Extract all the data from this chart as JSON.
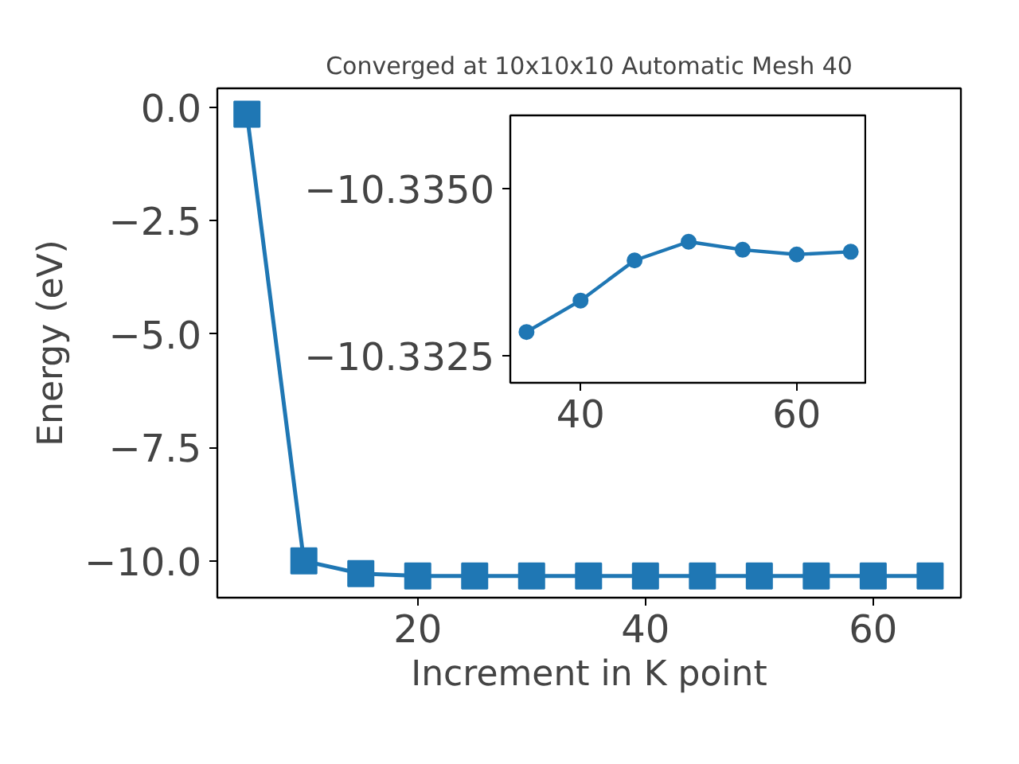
{
  "chart_data": [
    {
      "type": "line",
      "title": "Converged at 10x10x10 Automatic Mesh 40",
      "xlabel": "Increment in K point",
      "ylabel": "Energy (eV)",
      "marker": "square",
      "grid": false,
      "x": [
        5,
        10,
        15,
        20,
        25,
        30,
        35,
        40,
        45,
        50,
        55,
        60,
        65
      ],
      "series": [
        {
          "color": "#1f77b4",
          "values": [
            -0.15,
            -10.0,
            -10.28,
            -10.33,
            -10.33,
            -10.33,
            -10.33,
            -10.33,
            -10.33,
            -10.33,
            -10.33,
            -10.33,
            -10.33
          ]
        }
      ],
      "xlim": [
        2.4,
        67.7
      ],
      "ylim": [
        -10.81,
        0.42
      ],
      "xticks": [
        20,
        40,
        60
      ],
      "yticks": [
        {
          "value": 0,
          "label": "0.0"
        },
        {
          "value": -2.5,
          "label": "−2.5"
        },
        {
          "value": -5,
          "label": "−5.0"
        },
        {
          "value": -7.5,
          "label": "−7.5"
        },
        {
          "value": -10,
          "label": "−10.0"
        }
      ]
    },
    {
      "type": "line",
      "marker": "circle",
      "grid": false,
      "x": [
        35,
        40,
        45,
        50,
        55,
        60,
        65
      ],
      "series": [
        {
          "color": "#1f77b4",
          "values": [
            -10.33286,
            -10.33333,
            -10.33393,
            -10.33421,
            -10.33409,
            -10.33402,
            -10.33406
          ]
        }
      ],
      "xlim": [
        33.5,
        66.5
      ],
      "ylim": [
        -10.3321,
        -10.3361
      ],
      "xticks": [
        40,
        60
      ],
      "yticks": [
        {
          "value": -10.335,
          "label": "−10.3350"
        },
        {
          "value": -10.3325,
          "label": "−10.3325"
        }
      ]
    }
  ]
}
